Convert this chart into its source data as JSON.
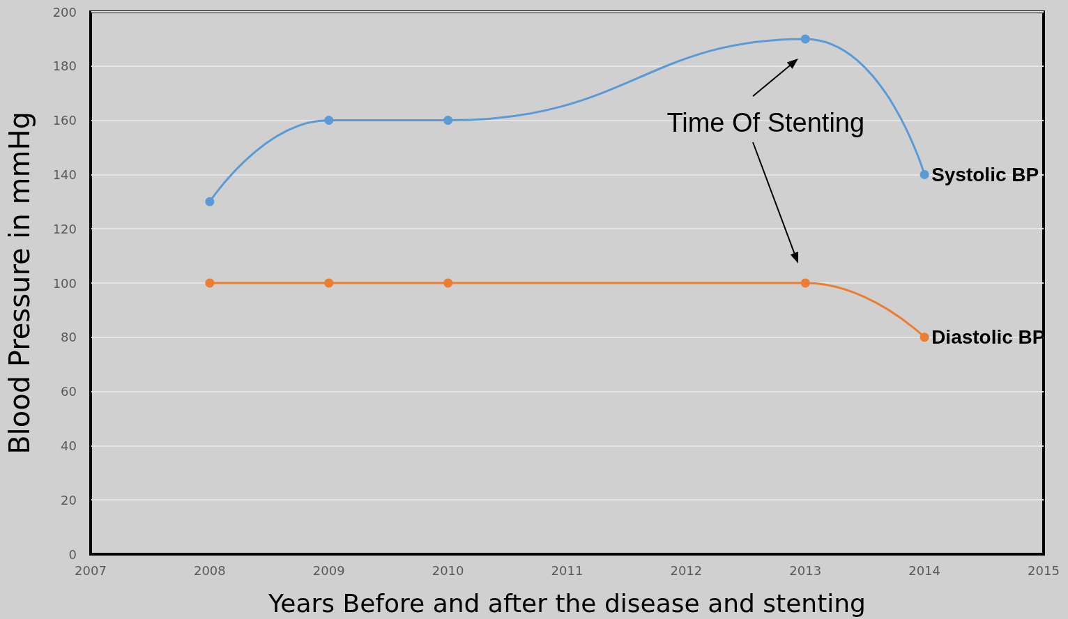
{
  "chart_data": {
    "type": "line",
    "xlabel": "Years Before and after the disease and stenting",
    "ylabel": "Blood Pressure in mmHg",
    "x": [
      2008,
      2009,
      2010,
      2013,
      2014
    ],
    "series": [
      {
        "name": "Systolic BP",
        "color": "#5b9bd5",
        "values": [
          130,
          160,
          160,
          190,
          140
        ]
      },
      {
        "name": "Diastolic BP",
        "color": "#ed7d31",
        "values": [
          100,
          100,
          100,
          100,
          80
        ]
      }
    ],
    "xlim": [
      2007,
      2015
    ],
    "xticks": [
      2007,
      2008,
      2009,
      2010,
      2011,
      2012,
      2013,
      2014,
      2015
    ],
    "ylim": [
      0,
      200
    ],
    "yticks": [
      0,
      20,
      40,
      60,
      80,
      100,
      120,
      140,
      160,
      180,
      200
    ],
    "grid": "y",
    "legend": false,
    "marker": "circle",
    "line_style": "solid",
    "annotations": [
      "Time Of Stenting"
    ]
  }
}
